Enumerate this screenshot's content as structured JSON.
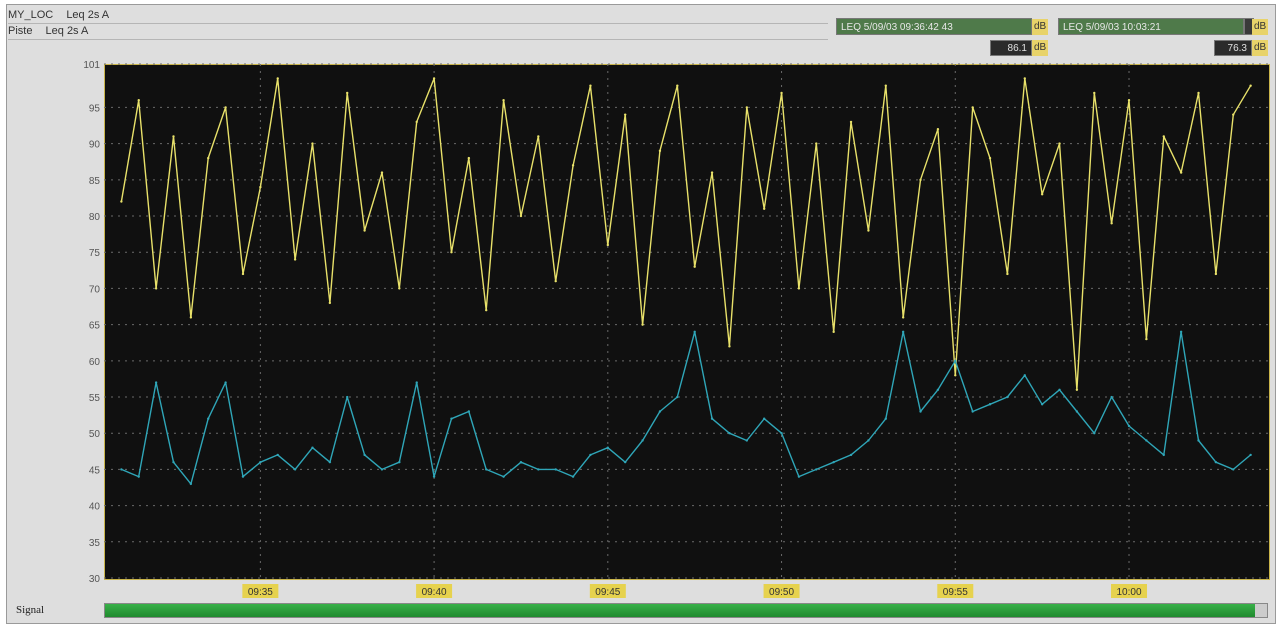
{
  "header": {
    "row1": {
      "location": "MY_LOC",
      "metric": "Leq 2s A"
    },
    "row2": {
      "location": "Piste",
      "metric": "Leq 2s A"
    }
  },
  "readouts": {
    "r1_label": "LEQ 5/09/03 09:36:42 43",
    "r1_unit": "dB",
    "r2_label": "LEQ 5/09/03 10:03:21",
    "r2_unit": "dB",
    "level1_value": "86.1",
    "level1_unit": "dB",
    "level2_value": "76.3",
    "level2_unit": "dB"
  },
  "signal": {
    "label": "Signal",
    "level": 0.99
  },
  "colors": {
    "series1": "#e8e16a",
    "series2": "#2fa6b8",
    "plot_bg": "#101010",
    "grid": "#6a6a6a",
    "signal": "#2ea43e"
  },
  "chart_data": {
    "type": "line",
    "xlabel": "",
    "ylabel": "",
    "ylim": [
      30,
      101
    ],
    "yticks": [
      "101",
      "95",
      "90",
      "85",
      "80",
      "75",
      "70",
      "65",
      "60",
      "55",
      "50",
      "45",
      "40",
      "35",
      "30"
    ],
    "xticks": [
      "09:35",
      "09:40",
      "09:45",
      "09:50",
      "09:55",
      "10:00"
    ],
    "grid": true,
    "series": [
      {
        "name": "Piste",
        "color": "#e8e16a",
        "x": [
          "09:31:00",
          "09:31:30",
          "09:32:00",
          "09:32:30",
          "09:33:00",
          "09:33:30",
          "09:34:00",
          "09:34:30",
          "09:35:00",
          "09:35:30",
          "09:36:00",
          "09:36:30",
          "09:37:00",
          "09:37:30",
          "09:38:00",
          "09:38:30",
          "09:39:00",
          "09:39:30",
          "09:40:00",
          "09:40:30",
          "09:41:00",
          "09:41:30",
          "09:42:00",
          "09:42:30",
          "09:43:00",
          "09:43:30",
          "09:44:00",
          "09:44:30",
          "09:45:00",
          "09:45:30",
          "09:46:00",
          "09:46:30",
          "09:47:00",
          "09:47:30",
          "09:48:00",
          "09:48:30",
          "09:49:00",
          "09:49:30",
          "09:50:00",
          "09:50:30",
          "09:51:00",
          "09:51:30",
          "09:52:00",
          "09:52:30",
          "09:53:00",
          "09:53:30",
          "09:54:00",
          "09:54:30",
          "09:55:00",
          "09:55:30",
          "09:56:00",
          "09:56:30",
          "09:57:00",
          "09:57:30",
          "09:58:00",
          "09:58:30",
          "09:59:00",
          "09:59:30",
          "10:00:00",
          "10:00:30",
          "10:01:00",
          "10:01:30",
          "10:02:00",
          "10:02:30",
          "10:03:00",
          "10:03:30"
        ],
        "values": [
          82,
          96,
          70,
          91,
          66,
          88,
          95,
          72,
          84,
          99,
          74,
          90,
          68,
          97,
          78,
          86,
          70,
          93,
          99,
          75,
          88,
          67,
          96,
          80,
          91,
          71,
          87,
          98,
          76,
          94,
          65,
          89,
          98,
          73,
          86,
          62,
          95,
          81,
          97,
          70,
          90,
          64,
          93,
          78,
          98,
          66,
          85,
          92,
          58,
          95,
          88,
          72,
          99,
          83,
          90,
          56,
          97,
          79,
          96,
          63,
          91,
          86,
          97,
          72,
          94,
          98
        ]
      },
      {
        "name": "MY_LOC",
        "color": "#2fa6b8",
        "x": [
          "09:31:00",
          "09:31:30",
          "09:32:00",
          "09:32:30",
          "09:33:00",
          "09:33:30",
          "09:34:00",
          "09:34:30",
          "09:35:00",
          "09:35:30",
          "09:36:00",
          "09:36:30",
          "09:37:00",
          "09:37:30",
          "09:38:00",
          "09:38:30",
          "09:39:00",
          "09:39:30",
          "09:40:00",
          "09:40:30",
          "09:41:00",
          "09:41:30",
          "09:42:00",
          "09:42:30",
          "09:43:00",
          "09:43:30",
          "09:44:00",
          "09:44:30",
          "09:45:00",
          "09:45:30",
          "09:46:00",
          "09:46:30",
          "09:47:00",
          "09:47:30",
          "09:48:00",
          "09:48:30",
          "09:49:00",
          "09:49:30",
          "09:50:00",
          "09:50:30",
          "09:51:00",
          "09:51:30",
          "09:52:00",
          "09:52:30",
          "09:53:00",
          "09:53:30",
          "09:54:00",
          "09:54:30",
          "09:55:00",
          "09:55:30",
          "09:56:00",
          "09:56:30",
          "09:57:00",
          "09:57:30",
          "09:58:00",
          "09:58:30",
          "09:59:00",
          "09:59:30",
          "10:00:00",
          "10:00:30",
          "10:01:00",
          "10:01:30",
          "10:02:00",
          "10:02:30",
          "10:03:00",
          "10:03:30"
        ],
        "values": [
          45,
          44,
          57,
          46,
          43,
          52,
          57,
          44,
          46,
          47,
          45,
          48,
          46,
          55,
          47,
          45,
          46,
          57,
          44,
          52,
          53,
          45,
          44,
          46,
          45,
          45,
          44,
          47,
          48,
          46,
          49,
          53,
          55,
          64,
          52,
          50,
          49,
          52,
          50,
          44,
          45,
          46,
          47,
          49,
          52,
          64,
          53,
          56,
          60,
          53,
          54,
          55,
          58,
          54,
          56,
          53,
          50,
          55,
          51,
          49,
          47,
          64,
          49,
          46,
          45,
          47
        ]
      }
    ]
  }
}
